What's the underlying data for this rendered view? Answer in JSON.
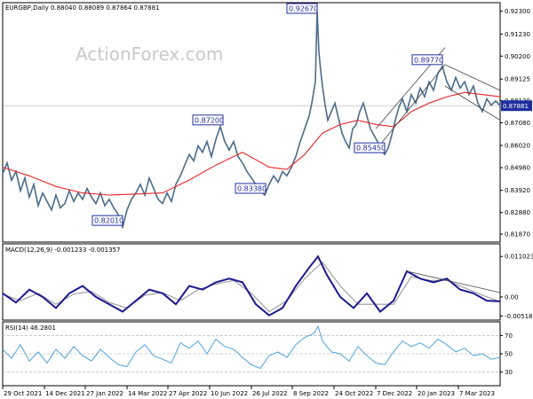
{
  "chart_data": {
    "type": "line",
    "main": {
      "label": "EURGBP,Daily  0.88040 0.88089 0.87864 0.87881",
      "watermark": "ActionForex.com",
      "ylim": [
        0.815,
        0.927
      ],
      "y_ticks": [
        "0.92300",
        "0.91230",
        "0.90200",
        "0.89125",
        "0.88120",
        "0.87080",
        "0.86020",
        "0.84980",
        "0.83920",
        "0.82880",
        "0.81870"
      ],
      "current_price": "0.87881",
      "price": [
        [
          0,
          0.847
        ],
        [
          5,
          0.852
        ],
        [
          10,
          0.844
        ],
        [
          15,
          0.848
        ],
        [
          20,
          0.839
        ],
        [
          25,
          0.845
        ],
        [
          30,
          0.836
        ],
        [
          35,
          0.842
        ],
        [
          40,
          0.832
        ],
        [
          45,
          0.838
        ],
        [
          50,
          0.834
        ],
        [
          55,
          0.83
        ],
        [
          60,
          0.837
        ],
        [
          65,
          0.831
        ],
        [
          70,
          0.833
        ],
        [
          75,
          0.839
        ],
        [
          80,
          0.834
        ],
        [
          85,
          0.838
        ],
        [
          90,
          0.835
        ],
        [
          95,
          0.84
        ],
        [
          100,
          0.836
        ],
        [
          105,
          0.833
        ],
        [
          110,
          0.838
        ],
        [
          115,
          0.832
        ],
        [
          120,
          0.835
        ],
        [
          125,
          0.831
        ],
        [
          130,
          0.828
        ],
        [
          135,
          0.822
        ],
        [
          140,
          0.83
        ],
        [
          145,
          0.835
        ],
        [
          150,
          0.838
        ],
        [
          155,
          0.842
        ],
        [
          160,
          0.837
        ],
        [
          165,
          0.845
        ],
        [
          170,
          0.84
        ],
        [
          175,
          0.835
        ],
        [
          180,
          0.833
        ],
        [
          185,
          0.838
        ],
        [
          190,
          0.834
        ],
        [
          195,
          0.842
        ],
        [
          200,
          0.846
        ],
        [
          205,
          0.851
        ],
        [
          210,
          0.856
        ],
        [
          215,
          0.853
        ],
        [
          220,
          0.86
        ],
        [
          225,
          0.857
        ],
        [
          230,
          0.862
        ],
        [
          235,
          0.855
        ],
        [
          240,
          0.863
        ],
        [
          245,
          0.869
        ],
        [
          250,
          0.862
        ],
        [
          255,
          0.858
        ],
        [
          260,
          0.862
        ],
        [
          265,
          0.855
        ],
        [
          270,
          0.852
        ],
        [
          275,
          0.848
        ],
        [
          280,
          0.845
        ],
        [
          285,
          0.842
        ],
        [
          290,
          0.839
        ],
        [
          295,
          0.837
        ],
        [
          300,
          0.842
        ],
        [
          305,
          0.846
        ],
        [
          310,
          0.843
        ],
        [
          315,
          0.848
        ],
        [
          320,
          0.846
        ],
        [
          325,
          0.85
        ],
        [
          330,
          0.855
        ],
        [
          335,
          0.862
        ],
        [
          340,
          0.868
        ],
        [
          345,
          0.874
        ],
        [
          348,
          0.88
        ],
        [
          352,
          0.89
        ],
        [
          354,
          0.923
        ],
        [
          356,
          0.904
        ],
        [
          358,
          0.895
        ],
        [
          360,
          0.888
        ],
        [
          363,
          0.879
        ],
        [
          366,
          0.872
        ],
        [
          370,
          0.876
        ],
        [
          374,
          0.88
        ],
        [
          378,
          0.873
        ],
        [
          382,
          0.866
        ],
        [
          386,
          0.862
        ],
        [
          390,
          0.859
        ],
        [
          394,
          0.868
        ],
        [
          398,
          0.87
        ],
        [
          402,
          0.876
        ],
        [
          406,
          0.88
        ],
        [
          410,
          0.874
        ],
        [
          414,
          0.868
        ],
        [
          418,
          0.865
        ],
        [
          422,
          0.862
        ],
        [
          426,
          0.858
        ],
        [
          430,
          0.856
        ],
        [
          434,
          0.859
        ],
        [
          438,
          0.865
        ],
        [
          442,
          0.872
        ],
        [
          446,
          0.878
        ],
        [
          450,
          0.882
        ],
        [
          455,
          0.876
        ],
        [
          460,
          0.884
        ],
        [
          465,
          0.88
        ],
        [
          470,
          0.887
        ],
        [
          475,
          0.883
        ],
        [
          480,
          0.89
        ],
        [
          485,
          0.886
        ],
        [
          490,
          0.894
        ],
        [
          495,
          0.8972
        ],
        [
          500,
          0.89
        ],
        [
          505,
          0.886
        ],
        [
          510,
          0.892
        ],
        [
          515,
          0.887
        ],
        [
          520,
          0.89
        ],
        [
          525,
          0.884
        ],
        [
          530,
          0.888
        ],
        [
          535,
          0.88
        ],
        [
          540,
          0.876
        ],
        [
          545,
          0.882
        ],
        [
          550,
          0.879
        ],
        [
          555,
          0.881
        ],
        [
          560,
          0.8788
        ]
      ],
      "ma": [
        [
          0,
          0.85
        ],
        [
          30,
          0.846
        ],
        [
          60,
          0.841
        ],
        [
          90,
          0.838
        ],
        [
          120,
          0.837
        ],
        [
          150,
          0.8375
        ],
        [
          180,
          0.838
        ],
        [
          210,
          0.844
        ],
        [
          240,
          0.851
        ],
        [
          270,
          0.857
        ],
        [
          300,
          0.85
        ],
        [
          320,
          0.849
        ],
        [
          340,
          0.856
        ],
        [
          360,
          0.866
        ],
        [
          380,
          0.87
        ],
        [
          400,
          0.872
        ],
        [
          420,
          0.87
        ],
        [
          440,
          0.869
        ],
        [
          460,
          0.876
        ],
        [
          480,
          0.88
        ],
        [
          500,
          0.883
        ],
        [
          520,
          0.885
        ],
        [
          540,
          0.884
        ],
        [
          560,
          0.883
        ]
      ],
      "channel_lines": [
        {
          "from": [
            420,
            0.858
          ],
          "to": [
            498,
            0.898
          ]
        },
        {
          "from": [
            420,
            0.868
          ],
          "to": [
            498,
            0.906
          ]
        },
        {
          "from": [
            498,
            0.898
          ],
          "to": [
            560,
            0.886
          ]
        },
        {
          "from": [
            498,
            0.888
          ],
          "to": [
            560,
            0.872
          ]
        }
      ],
      "annotations": [
        {
          "text": "0.92670",
          "x": 354,
          "y": 0.923
        },
        {
          "text": "0.89770",
          "x": 495,
          "y": 0.8972
        },
        {
          "text": "0.87200",
          "x": 248,
          "y": 0.869
        },
        {
          "text": "0.85450",
          "x": 430,
          "y": 0.856
        },
        {
          "text": "0.83380",
          "x": 296,
          "y": 0.837
        },
        {
          "text": "0.82010",
          "x": 135,
          "y": 0.822
        }
      ]
    },
    "macd": {
      "label": "MACD(12,26,9) -0.001233 -0.001357",
      "ylim": [
        -0.0058,
        0.0118
      ],
      "y_ticks": [
        "0.011023",
        "0.00",
        "-0.005182"
      ],
      "macd": [
        [
          0,
          0.001
        ],
        [
          15,
          -0.0015
        ],
        [
          30,
          0.002
        ],
        [
          45,
          0.0
        ],
        [
          60,
          -0.003
        ],
        [
          75,
          0.001
        ],
        [
          90,
          0.003
        ],
        [
          105,
          0.0
        ],
        [
          120,
          -0.002
        ],
        [
          135,
          -0.004
        ],
        [
          150,
          -0.001
        ],
        [
          165,
          0.002
        ],
        [
          180,
          0.001
        ],
        [
          195,
          -0.002
        ],
        [
          210,
          0.003
        ],
        [
          225,
          0.002
        ],
        [
          240,
          0.004
        ],
        [
          255,
          0.005
        ],
        [
          270,
          0.004
        ],
        [
          285,
          -0.002
        ],
        [
          300,
          -0.005
        ],
        [
          315,
          -0.003
        ],
        [
          330,
          0.003
        ],
        [
          345,
          0.008
        ],
        [
          355,
          0.011
        ],
        [
          365,
          0.006
        ],
        [
          380,
          0.0
        ],
        [
          395,
          -0.003
        ],
        [
          410,
          0.001
        ],
        [
          425,
          -0.004
        ],
        [
          440,
          -0.001
        ],
        [
          455,
          0.007
        ],
        [
          470,
          0.005
        ],
        [
          485,
          0.004
        ],
        [
          500,
          0.005
        ],
        [
          515,
          0.002
        ],
        [
          530,
          0.001
        ],
        [
          545,
          -0.001
        ],
        [
          560,
          -0.0012
        ]
      ],
      "signal": [
        [
          0,
          0.0008
        ],
        [
          20,
          -0.001
        ],
        [
          40,
          0.001
        ],
        [
          60,
          -0.002
        ],
        [
          80,
          0.0008
        ],
        [
          100,
          0.0015
        ],
        [
          120,
          -0.0015
        ],
        [
          140,
          -0.003
        ],
        [
          160,
          0.0005
        ],
        [
          180,
          0.0012
        ],
        [
          200,
          -0.001
        ],
        [
          220,
          0.002
        ],
        [
          240,
          0.0035
        ],
        [
          260,
          0.0045
        ],
        [
          280,
          0.001
        ],
        [
          300,
          -0.004
        ],
        [
          320,
          -0.001
        ],
        [
          340,
          0.005
        ],
        [
          360,
          0.0095
        ],
        [
          380,
          0.003
        ],
        [
          400,
          -0.002
        ],
        [
          420,
          -0.002
        ],
        [
          440,
          -0.002
        ],
        [
          460,
          0.0055
        ],
        [
          480,
          0.0045
        ],
        [
          500,
          0.0045
        ],
        [
          520,
          0.0025
        ],
        [
          540,
          0.0005
        ],
        [
          560,
          -0.0013
        ]
      ],
      "trendline": {
        "from": [
          455,
          0.007
        ],
        "to": [
          560,
          0.0012
        ]
      }
    },
    "rsi": {
      "label": "RSI(14) 46.2801",
      "ylim": [
        15,
        85
      ],
      "y_ticks": [
        "70",
        "50",
        "30"
      ],
      "levels": [
        70,
        50,
        30
      ],
      "values": [
        [
          0,
          55
        ],
        [
          10,
          45
        ],
        [
          20,
          60
        ],
        [
          30,
          42
        ],
        [
          40,
          52
        ],
        [
          50,
          40
        ],
        [
          60,
          55
        ],
        [
          70,
          45
        ],
        [
          80,
          58
        ],
        [
          90,
          48
        ],
        [
          100,
          42
        ],
        [
          110,
          55
        ],
        [
          120,
          46
        ],
        [
          130,
          38
        ],
        [
          140,
          36
        ],
        [
          150,
          52
        ],
        [
          160,
          60
        ],
        [
          170,
          48
        ],
        [
          180,
          44
        ],
        [
          190,
          40
        ],
        [
          200,
          62
        ],
        [
          210,
          56
        ],
        [
          220,
          64
        ],
        [
          230,
          50
        ],
        [
          240,
          66
        ],
        [
          250,
          58
        ],
        [
          260,
          55
        ],
        [
          270,
          46
        ],
        [
          280,
          38
        ],
        [
          290,
          34
        ],
        [
          300,
          48
        ],
        [
          310,
          52
        ],
        [
          320,
          46
        ],
        [
          330,
          60
        ],
        [
          340,
          68
        ],
        [
          350,
          72
        ],
        [
          355,
          80
        ],
        [
          360,
          64
        ],
        [
          370,
          52
        ],
        [
          380,
          50
        ],
        [
          390,
          42
        ],
        [
          400,
          58
        ],
        [
          410,
          48
        ],
        [
          420,
          40
        ],
        [
          430,
          38
        ],
        [
          440,
          52
        ],
        [
          450,
          64
        ],
        [
          460,
          58
        ],
        [
          470,
          62
        ],
        [
          480,
          56
        ],
        [
          490,
          66
        ],
        [
          500,
          60
        ],
        [
          510,
          52
        ],
        [
          520,
          56
        ],
        [
          530,
          48
        ],
        [
          540,
          50
        ],
        [
          550,
          44
        ],
        [
          560,
          46
        ]
      ]
    },
    "x_labels": [
      "29 Oct 2021",
      "14 Dec 2021",
      "27 Jan 2022",
      "14 Mar 2022",
      "27 Apr 2022",
      "10 Jun 2022",
      "26 Jul 2022",
      "8 Sep 2022",
      "24 Oct 2022",
      "7 Dec 2022",
      "20 Jan 2023",
      "7 Mar 2023"
    ],
    "x_label_positions": [
      0,
      47,
      93,
      140,
      186,
      233,
      280,
      326,
      373,
      420,
      466,
      513
    ],
    "x_range": [
      0,
      560
    ]
  },
  "colors": {
    "price": "#4a6b8a",
    "ma": "#e8262b",
    "channel": "#444444",
    "macd": "#1a1a8f",
    "signal": "#9a9a9a",
    "rsi": "#4aa3e0",
    "annotation": "#1f2f9f",
    "price_box": "#1f2f9f",
    "grid": "#c0c0c0"
  }
}
